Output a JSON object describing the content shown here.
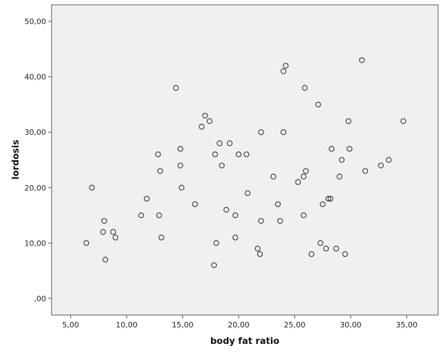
{
  "chart_data": {
    "type": "scatter",
    "xlabel": "body fat ratio",
    "ylabel": "lordosis",
    "xlim": [
      3.3,
      37.8
    ],
    "ylim": [
      -3.0,
      53.0
    ],
    "x_ticks": [
      {
        "value": 5,
        "label": "5,00"
      },
      {
        "value": 10,
        "label": "10,00"
      },
      {
        "value": 15,
        "label": "15,00"
      },
      {
        "value": 20,
        "label": "20,00"
      },
      {
        "value": 25,
        "label": "25,00"
      },
      {
        "value": 30,
        "label": "30,00"
      },
      {
        "value": 35,
        "label": "35,00"
      }
    ],
    "y_ticks": [
      {
        "value": 0,
        "label": ",00"
      },
      {
        "value": 10,
        "label": "10,00"
      },
      {
        "value": 20,
        "label": "20,00"
      },
      {
        "value": 30,
        "label": "30,00"
      },
      {
        "value": 40,
        "label": "40,00"
      },
      {
        "value": 50,
        "label": "50,00"
      }
    ],
    "grid": false,
    "colors": {
      "plot_background": "#f0f0f0",
      "marker_stroke": "#333333",
      "marker_fill": "none"
    },
    "points": [
      {
        "x": 6.4,
        "y": 10
      },
      {
        "x": 6.9,
        "y": 20
      },
      {
        "x": 7.9,
        "y": 12
      },
      {
        "x": 8.0,
        "y": 14
      },
      {
        "x": 8.1,
        "y": 7
      },
      {
        "x": 8.8,
        "y": 12
      },
      {
        "x": 9.0,
        "y": 11
      },
      {
        "x": 11.3,
        "y": 15
      },
      {
        "x": 11.8,
        "y": 18
      },
      {
        "x": 12.8,
        "y": 26
      },
      {
        "x": 12.9,
        "y": 15
      },
      {
        "x": 13.0,
        "y": 23
      },
      {
        "x": 13.1,
        "y": 11
      },
      {
        "x": 14.4,
        "y": 38
      },
      {
        "x": 14.8,
        "y": 24
      },
      {
        "x": 14.8,
        "y": 27
      },
      {
        "x": 14.9,
        "y": 20
      },
      {
        "x": 16.1,
        "y": 17
      },
      {
        "x": 16.7,
        "y": 31
      },
      {
        "x": 17.0,
        "y": 33
      },
      {
        "x": 17.4,
        "y": 32
      },
      {
        "x": 17.8,
        "y": 6
      },
      {
        "x": 17.9,
        "y": 26
      },
      {
        "x": 18.0,
        "y": 10
      },
      {
        "x": 18.3,
        "y": 28
      },
      {
        "x": 18.5,
        "y": 24
      },
      {
        "x": 18.9,
        "y": 16
      },
      {
        "x": 19.2,
        "y": 28
      },
      {
        "x": 19.7,
        "y": 15
      },
      {
        "x": 19.7,
        "y": 11
      },
      {
        "x": 20.0,
        "y": 26
      },
      {
        "x": 20.7,
        "y": 26
      },
      {
        "x": 20.8,
        "y": 19
      },
      {
        "x": 21.7,
        "y": 9
      },
      {
        "x": 21.9,
        "y": 8
      },
      {
        "x": 22.0,
        "y": 30
      },
      {
        "x": 22.0,
        "y": 14
      },
      {
        "x": 23.1,
        "y": 22
      },
      {
        "x": 23.5,
        "y": 17
      },
      {
        "x": 23.7,
        "y": 14
      },
      {
        "x": 24.0,
        "y": 41
      },
      {
        "x": 24.0,
        "y": 30
      },
      {
        "x": 24.2,
        "y": 42
      },
      {
        "x": 25.3,
        "y": 21
      },
      {
        "x": 25.8,
        "y": 22
      },
      {
        "x": 25.8,
        "y": 15
      },
      {
        "x": 25.9,
        "y": 38
      },
      {
        "x": 26.0,
        "y": 23
      },
      {
        "x": 26.5,
        "y": 8
      },
      {
        "x": 27.1,
        "y": 35
      },
      {
        "x": 27.3,
        "y": 10
      },
      {
        "x": 27.5,
        "y": 17
      },
      {
        "x": 27.8,
        "y": 9
      },
      {
        "x": 28.0,
        "y": 18
      },
      {
        "x": 28.2,
        "y": 18
      },
      {
        "x": 28.3,
        "y": 27
      },
      {
        "x": 28.7,
        "y": 9
      },
      {
        "x": 29.0,
        "y": 22
      },
      {
        "x": 29.2,
        "y": 25
      },
      {
        "x": 29.5,
        "y": 8
      },
      {
        "x": 29.8,
        "y": 32
      },
      {
        "x": 29.9,
        "y": 27
      },
      {
        "x": 31.0,
        "y": 43
      },
      {
        "x": 31.3,
        "y": 23
      },
      {
        "x": 32.7,
        "y": 24
      },
      {
        "x": 33.4,
        "y": 25
      },
      {
        "x": 34.7,
        "y": 32
      }
    ]
  }
}
